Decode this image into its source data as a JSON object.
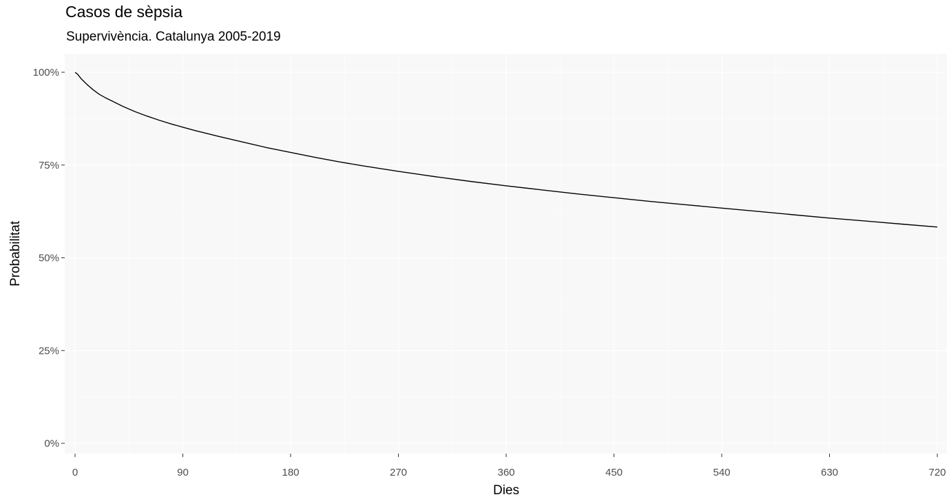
{
  "chart_data": {
    "type": "line",
    "title": "Casos de sèpsia",
    "subtitle": "Supervivència. Catalunya 2005-2019",
    "xlabel": "Dies",
    "ylabel": "Probabilitat",
    "xlim": [
      0,
      720
    ],
    "ylim": [
      0,
      1
    ],
    "x_ticks": [
      0,
      90,
      180,
      270,
      360,
      450,
      540,
      630,
      720
    ],
    "x_tick_labels": [
      "0",
      "90",
      "180",
      "270",
      "360",
      "450",
      "540",
      "630",
      "720"
    ],
    "y_ticks": [
      0,
      0.25,
      0.5,
      0.75,
      1.0
    ],
    "y_tick_labels": [
      "0%",
      "25%",
      "50%",
      "75%",
      "100%"
    ],
    "grid": true,
    "legend": "none",
    "colors": {
      "panel": "#f8f8f8",
      "grid": "#ffffff",
      "line": "#000000",
      "tick_text": "#4d4d4d"
    },
    "series": [
      {
        "x": [
          0,
          2,
          5,
          10,
          15,
          20,
          25,
          30,
          40,
          50,
          60,
          70,
          80,
          90,
          100,
          120,
          140,
          160,
          180,
          200,
          220,
          240,
          270,
          300,
          330,
          360,
          390,
          420,
          450,
          480,
          510,
          540,
          570,
          600,
          630,
          660,
          690,
          720
        ],
        "values": [
          1.0,
          0.995,
          0.983,
          0.967,
          0.953,
          0.941,
          0.932,
          0.924,
          0.908,
          0.894,
          0.882,
          0.871,
          0.861,
          0.852,
          0.843,
          0.827,
          0.812,
          0.797,
          0.784,
          0.771,
          0.759,
          0.748,
          0.733,
          0.719,
          0.706,
          0.694,
          0.683,
          0.672,
          0.662,
          0.652,
          0.643,
          0.634,
          0.625,
          0.616,
          0.607,
          0.599,
          0.591,
          0.583
        ]
      }
    ]
  }
}
